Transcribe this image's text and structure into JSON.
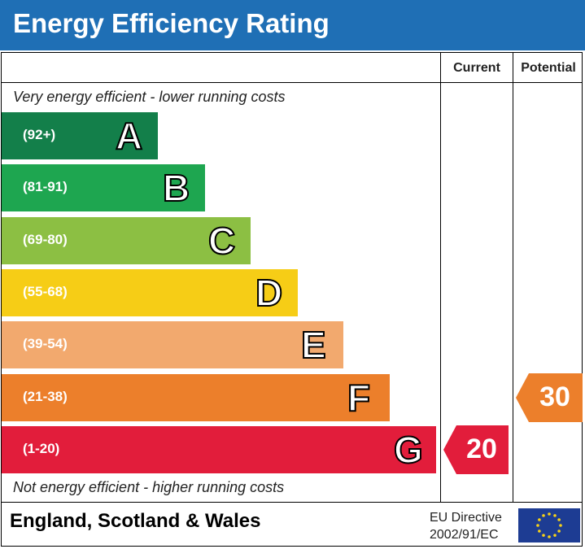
{
  "header": {
    "title": "Energy Efficiency Rating",
    "color": "#1f6fb5"
  },
  "columns": {
    "current": "Current",
    "potential": "Potential"
  },
  "notes": {
    "top": "Very energy efficient - lower running costs",
    "bottom": "Not energy efficient - higher running costs"
  },
  "footer": {
    "region": "England, Scotland & Wales",
    "directive_line1": "EU Directive",
    "directive_line2": "2002/91/EC"
  },
  "chart_data": {
    "type": "bar",
    "title": "Energy Efficiency Rating",
    "categories": [
      "A",
      "B",
      "C",
      "D",
      "E",
      "F",
      "G"
    ],
    "bands": [
      {
        "letter": "A",
        "range": "(92+)",
        "color": "#137f4a"
      },
      {
        "letter": "B",
        "range": "(81-91)",
        "color": "#1ea650"
      },
      {
        "letter": "C",
        "range": "(69-80)",
        "color": "#8cbf43"
      },
      {
        "letter": "D",
        "range": "(55-68)",
        "color": "#f6cd16"
      },
      {
        "letter": "E",
        "range": "(39-54)",
        "color": "#f2a96e"
      },
      {
        "letter": "F",
        "range": "(21-38)",
        "color": "#ec7f2b"
      },
      {
        "letter": "G",
        "range": "(1-20)",
        "color": "#e21d3b"
      }
    ],
    "current": {
      "value": 20,
      "band": "G",
      "color": "#e21d3b"
    },
    "potential": {
      "value": 30,
      "band": "F",
      "color": "#ec7f2b"
    }
  }
}
